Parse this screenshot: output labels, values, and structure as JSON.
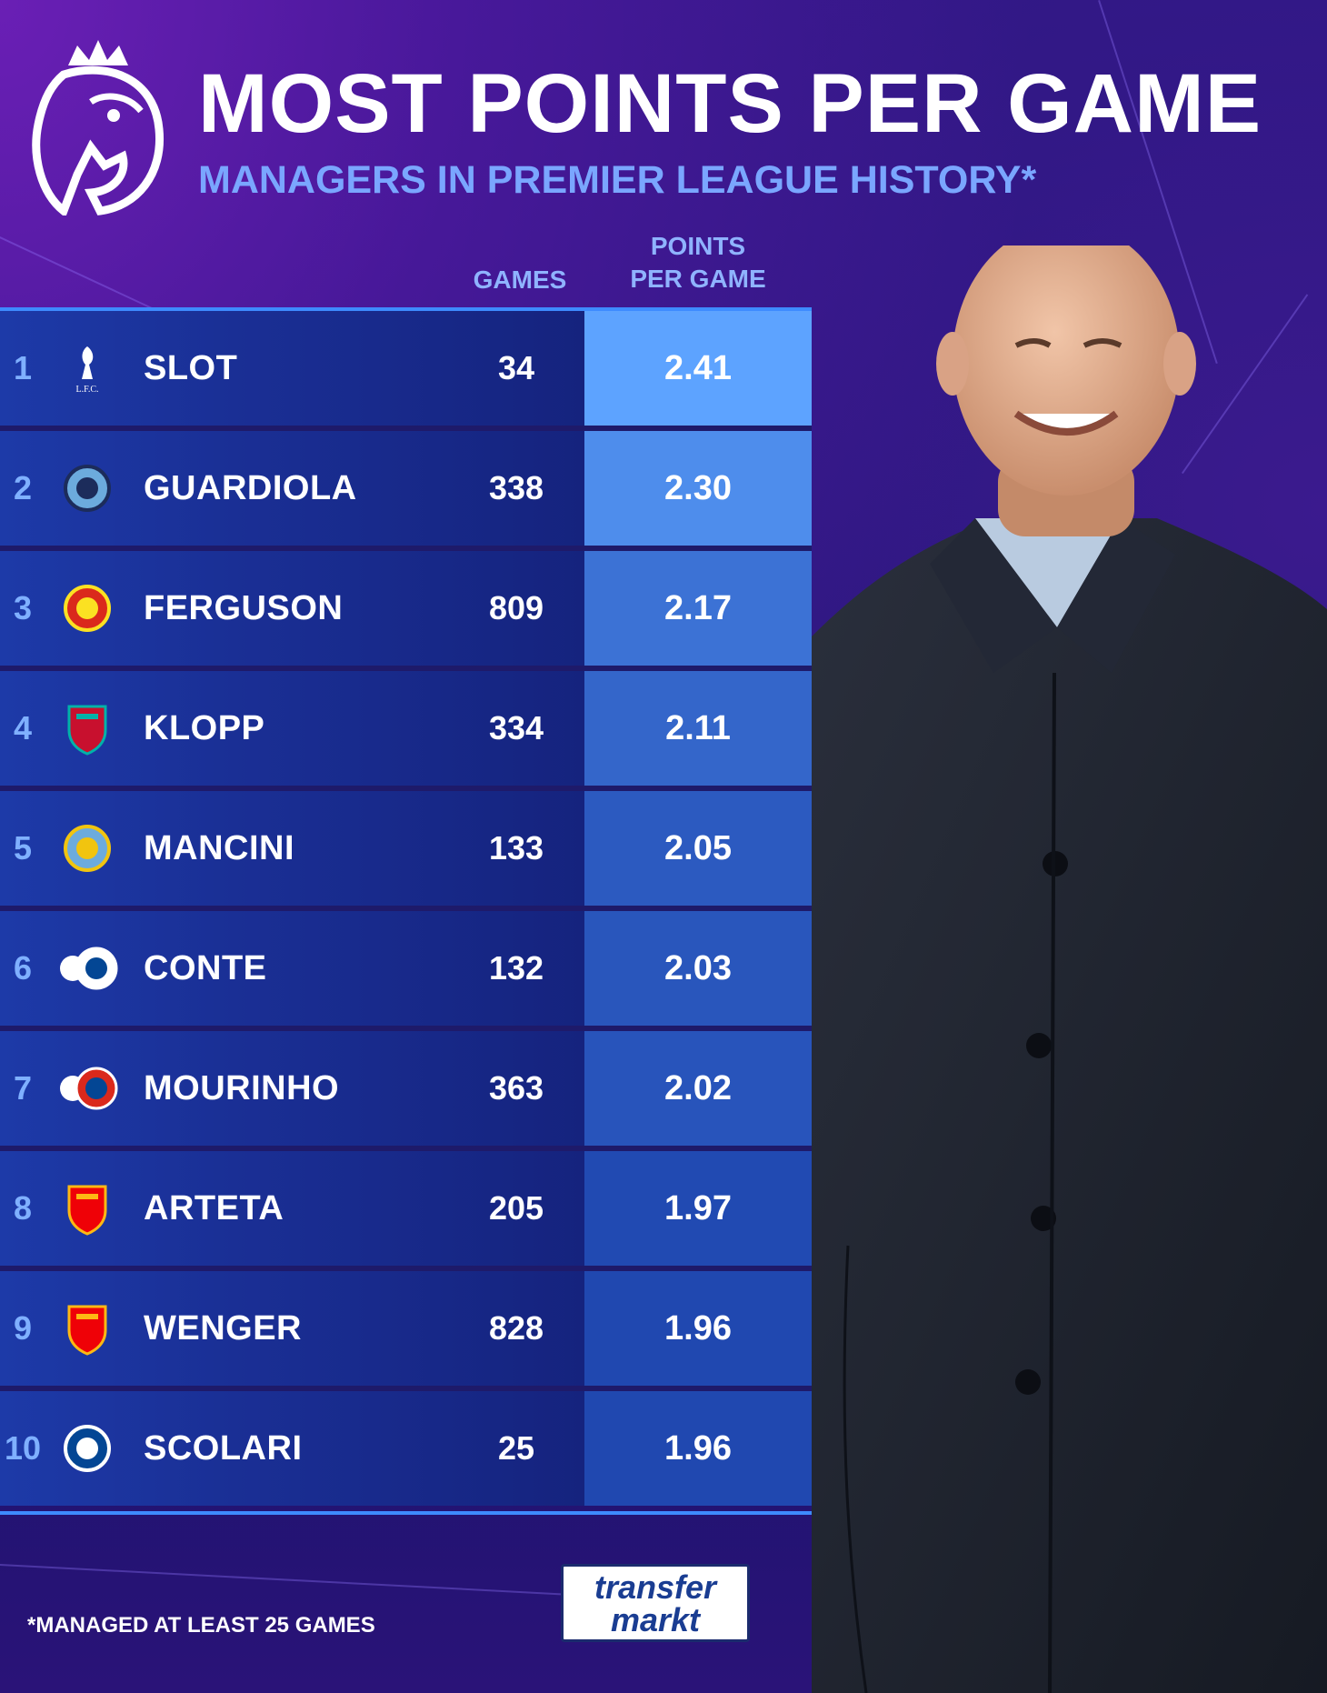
{
  "header": {
    "title": "MOST POINTS PER GAME",
    "subtitle": "MANAGERS IN PREMIER LEAGUE HISTORY*"
  },
  "columns": {
    "games": "GAMES",
    "ppg_line1": "POINTS",
    "ppg_line2": "PER GAME"
  },
  "footnote": "*MANAGED AT LEAST 25 GAMES",
  "brand": {
    "line1": "transfer",
    "line2": "markt"
  },
  "colors": {
    "ppg_max": "#5da3ff",
    "ppg_min": "#2048b0",
    "rank_text": "#7fb0ff",
    "accent_line": "#3e8bff"
  },
  "chart_data": {
    "type": "table",
    "title": "MOST POINTS PER GAME",
    "subtitle": "MANAGERS IN PREMIER LEAGUE HISTORY*",
    "columns": [
      "",
      "",
      "GAMES",
      "POINTS PER GAME"
    ],
    "rows": [
      {
        "rank": "1",
        "badge": "liverpool-lfc-badge",
        "name": "SLOT",
        "games": "34",
        "ppg": "2.41"
      },
      {
        "rank": "2",
        "badge": "manchester-city-badge",
        "name": "GUARDIOLA",
        "games": "338",
        "ppg": "2.30"
      },
      {
        "rank": "3",
        "badge": "manchester-united-badge",
        "name": "FERGUSON",
        "games": "809",
        "ppg": "2.17"
      },
      {
        "rank": "4",
        "badge": "liverpool-crest-badge",
        "name": "KLOPP",
        "games": "334",
        "ppg": "2.11"
      },
      {
        "rank": "5",
        "badge": "manchester-city-old-badge",
        "name": "MANCINI",
        "games": "133",
        "ppg": "2.05"
      },
      {
        "rank": "6",
        "badge": "tottenham-chelsea-badges",
        "name": "CONTE",
        "games": "132",
        "ppg": "2.03"
      },
      {
        "rank": "7",
        "badge": "tottenham-united-chelsea-badges",
        "name": "MOURINHO",
        "games": "363",
        "ppg": "2.02"
      },
      {
        "rank": "8",
        "badge": "arsenal-badge",
        "name": "ARTETA",
        "games": "205",
        "ppg": "1.97"
      },
      {
        "rank": "9",
        "badge": "arsenal-badge",
        "name": "WENGER",
        "games": "828",
        "ppg": "1.96"
      },
      {
        "rank": "10",
        "badge": "chelsea-badge",
        "name": "SCOLARI",
        "games": "25",
        "ppg": "1.96"
      }
    ]
  }
}
